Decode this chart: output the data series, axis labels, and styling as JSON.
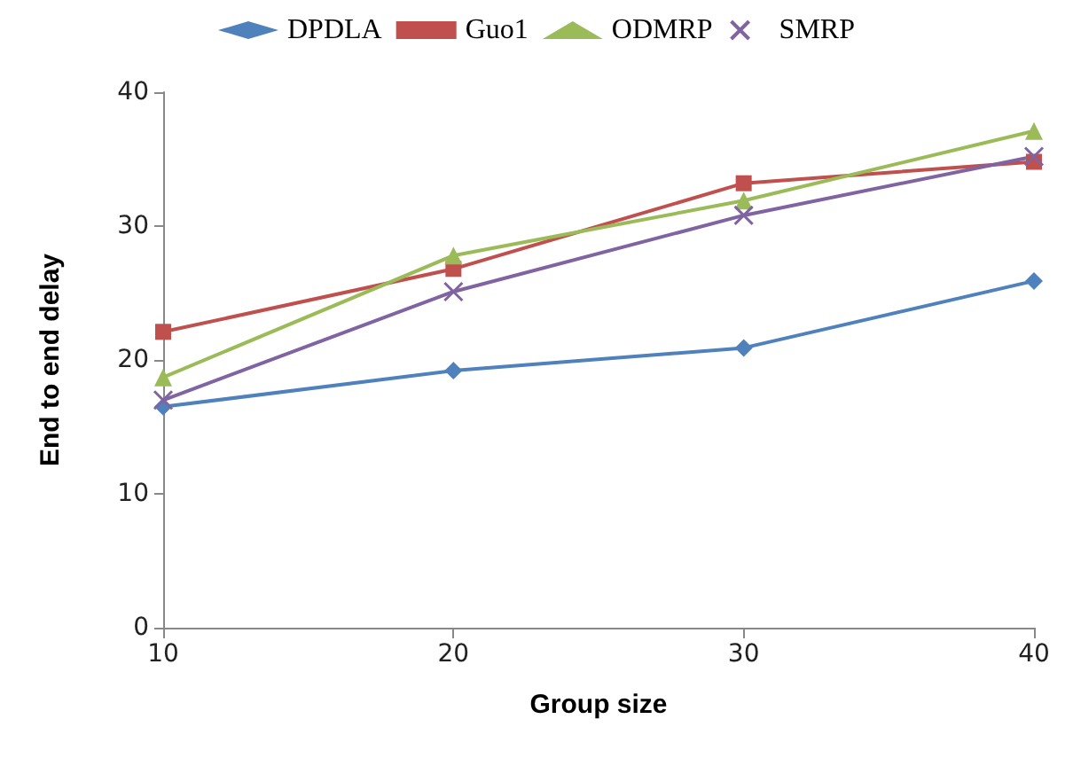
{
  "chart_data": {
    "type": "line",
    "xlabel": "Group size",
    "ylabel": "End to end delay",
    "x": [
      10,
      20,
      30,
      40
    ],
    "xlim": [
      10,
      40
    ],
    "xticks": [
      10,
      20,
      30,
      40
    ],
    "ylim": [
      0,
      40
    ],
    "yticks": [
      0,
      10,
      20,
      30,
      40
    ],
    "grid": false,
    "legend": "top",
    "line_style": "solid",
    "series": [
      {
        "name": "DPDLA",
        "color": "#4f81bd",
        "marker": "diamond",
        "values": [
          16.5,
          19.2,
          20.9,
          25.9
        ]
      },
      {
        "name": "Guo1",
        "color": "#c0504d",
        "marker": "square",
        "values": [
          22.1,
          26.8,
          33.2,
          34.8
        ]
      },
      {
        "name": "ODMRP",
        "color": "#9bbb59",
        "marker": "triangle",
        "values": [
          18.7,
          27.8,
          31.9,
          37.1
        ]
      },
      {
        "name": "SMRP",
        "color": "#8064a2",
        "marker": "cross",
        "values": [
          17,
          25.1,
          30.8,
          35.2
        ]
      }
    ]
  }
}
